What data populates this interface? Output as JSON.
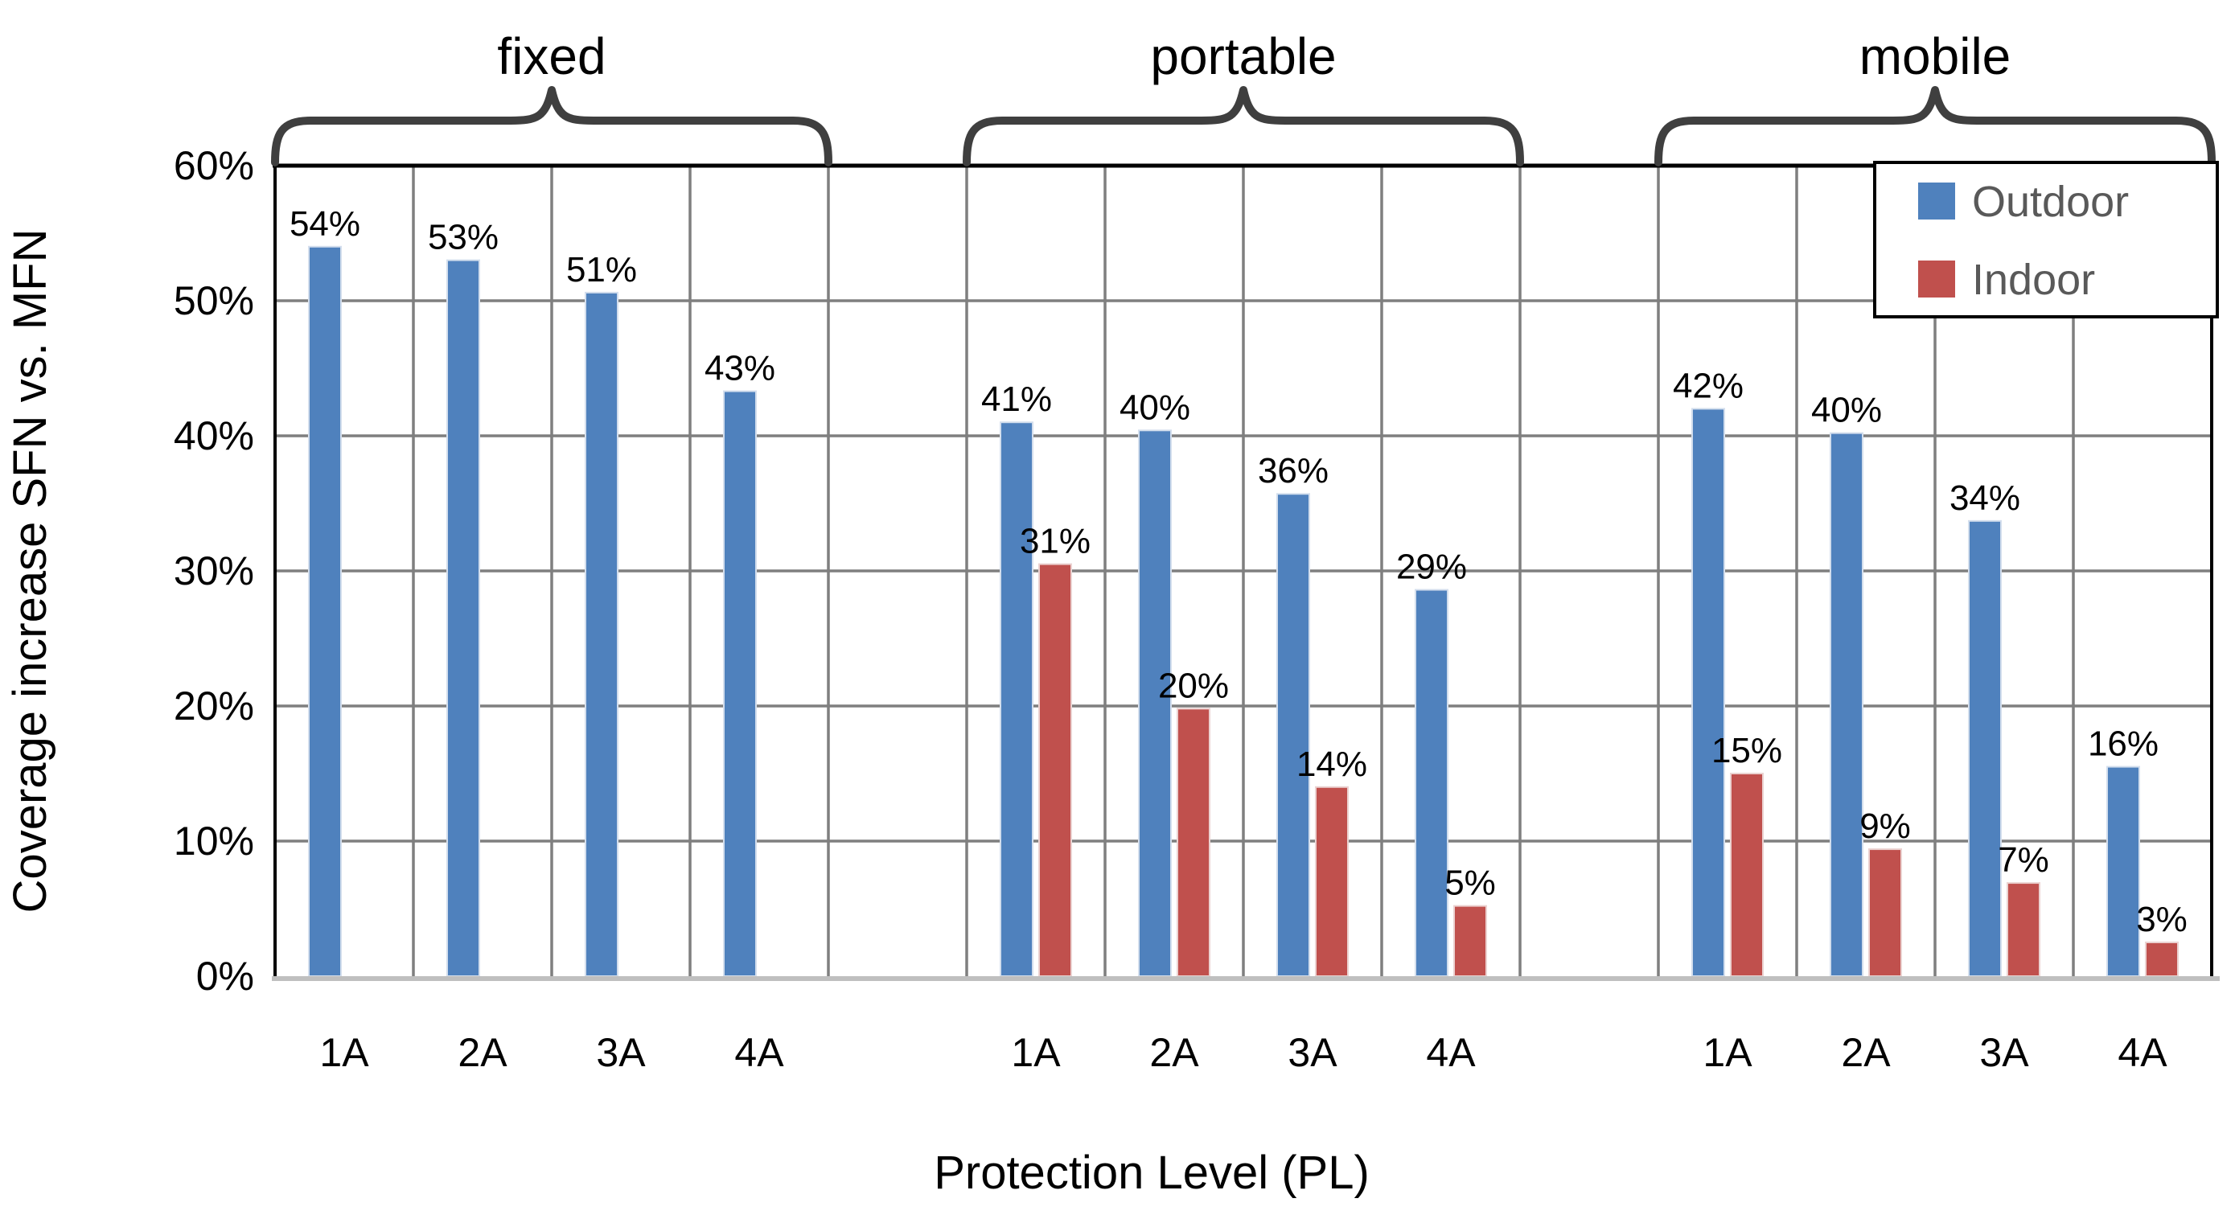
{
  "chart_data": {
    "type": "bar",
    "title": "",
    "xlabel": "Protection Level (PL)",
    "ylabel": "Coverage increase SFN vs. MFN",
    "ylim": [
      0,
      60
    ],
    "ytick_step": 10,
    "ytick_labels": [
      "0%",
      "10%",
      "20%",
      "30%",
      "40%",
      "50%",
      "60%"
    ],
    "grid": true,
    "legend_position": "top-right",
    "groups": [
      {
        "name": "fixed",
        "categories": [
          "1A",
          "2A",
          "3A",
          "4A"
        ],
        "series": [
          {
            "name": "Outdoor",
            "values": [
              54,
              53,
              50.6,
              43.3
            ],
            "labels": [
              "54%",
              "53%",
              "51%",
              "43%"
            ]
          },
          {
            "name": "Indoor",
            "values": [
              null,
              null,
              null,
              null
            ],
            "labels": [
              null,
              null,
              null,
              null
            ]
          }
        ]
      },
      {
        "name": "portable",
        "categories": [
          "1A",
          "2A",
          "3A",
          "4A"
        ],
        "series": [
          {
            "name": "Outdoor",
            "values": [
              41,
              40.4,
              35.7,
              28.6
            ],
            "labels": [
              "41%",
              "40%",
              "36%",
              "29%"
            ]
          },
          {
            "name": "Indoor",
            "values": [
              30.5,
              19.8,
              14,
              5.2
            ],
            "labels": [
              "31%",
              "20%",
              "14%",
              "5%"
            ]
          }
        ]
      },
      {
        "name": "mobile",
        "categories": [
          "1A",
          "2A",
          "3A",
          "4A"
        ],
        "series": [
          {
            "name": "Outdoor",
            "values": [
              42,
              40.2,
              33.7,
              15.5
            ],
            "labels": [
              "42%",
              "40%",
              "34%",
              "16%"
            ]
          },
          {
            "name": "Indoor",
            "values": [
              15,
              9.4,
              6.9,
              2.5
            ],
            "labels": [
              "15%",
              "9%",
              "7%",
              "3%"
            ]
          }
        ]
      }
    ]
  },
  "legend": {
    "items": [
      {
        "label": "Outdoor",
        "color": "#4F81BD"
      },
      {
        "label": "Indoor",
        "color": "#C0504D"
      }
    ]
  },
  "styles": {
    "outdoor_color": "#4F81BD",
    "outdoor_edge": "#D3DEED",
    "indoor_color": "#C0504D",
    "indoor_edge": "#EBD2D1",
    "gridline_color": "#7F7F7F",
    "axis_bottom_color": "#BFBFBF",
    "border_color": "#000000",
    "brace_color": "#3F3F3F",
    "text_color": "#000000",
    "legend_text_color": "#595959",
    "background": "#FFFFFF"
  }
}
